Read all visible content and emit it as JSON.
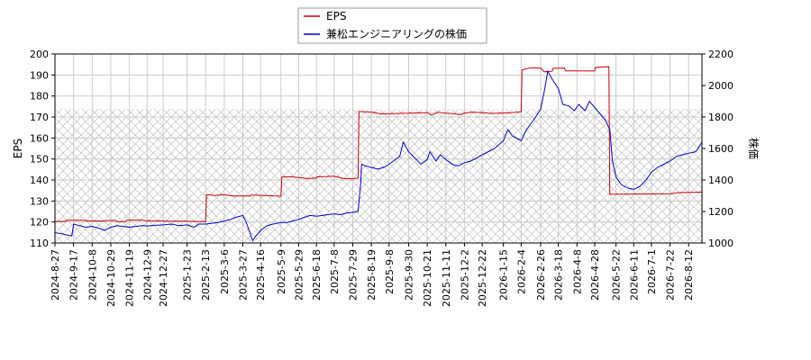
{
  "chart_data": {
    "type": "line",
    "title": "",
    "xlabel": "",
    "ylabel_left": "EPS",
    "ylabel_right": "株価",
    "ylim_left": [
      110,
      200
    ],
    "ylim_right": [
      1000,
      2200
    ],
    "yticks_left": [
      "110",
      "120",
      "130",
      "140",
      "150",
      "160",
      "170",
      "180",
      "190",
      "200"
    ],
    "yticks_right": [
      "1000",
      "1200",
      "1400",
      "1600",
      "1800",
      "2000",
      "2200"
    ],
    "xlim": [
      "2024-08-27",
      "2026-08-27"
    ],
    "xticks": [
      "2024-8-27",
      "2024-9-17",
      "2024-10-8",
      "2024-10-29",
      "2024-11-19",
      "2024-12-9",
      "2024-12-27",
      "2025-1-23",
      "2025-2-13",
      "2025-3-6",
      "2025-3-27",
      "2025-4-16",
      "2025-5-9",
      "2025-5-29",
      "2025-6-18",
      "2025-7-8",
      "2025-7-29",
      "2025-8-19",
      "2025-9-8",
      "2025-9-30",
      "2025-10-21",
      "2025-11-11",
      "2025-12-2",
      "2025-12-22",
      "2026-1-15",
      "2026-2-4",
      "2026-2-26",
      "2026-3-18",
      "2026-4-8",
      "2026-4-28",
      "2026-5-22",
      "2026-6-11",
      "2026-7-1",
      "2026-7-22",
      "2026-8-12"
    ],
    "grid": true,
    "legend_position": "top-center",
    "hatch_band_right": [
      1000,
      1850
    ],
    "series": [
      {
        "name": "EPS",
        "axis": "left",
        "color": "#cc0000",
        "points": [
          [
            "2024-08-27",
            120.3
          ],
          [
            "2024-09-08",
            120.3
          ],
          [
            "2024-09-09",
            120.8
          ],
          [
            "2024-10-01",
            120.8
          ],
          [
            "2024-10-02",
            120.5
          ],
          [
            "2024-10-23",
            120.5
          ],
          [
            "2024-10-24",
            120.7
          ],
          [
            "2024-11-04",
            120.7
          ],
          [
            "2024-11-05",
            120.2
          ],
          [
            "2024-11-15",
            120.2
          ],
          [
            "2024-11-16",
            120.9
          ],
          [
            "2024-12-06",
            120.9
          ],
          [
            "2024-12-07",
            120.6
          ],
          [
            "2024-12-27",
            120.6
          ],
          [
            "2024-12-28",
            120.4
          ],
          [
            "2025-01-21",
            120.4
          ],
          [
            "2025-02-13",
            120.2
          ],
          [
            "2025-02-14",
            133.0
          ],
          [
            "2025-02-24",
            132.6
          ],
          [
            "2025-03-05",
            133.1
          ],
          [
            "2025-03-15",
            132.4
          ],
          [
            "2025-04-04",
            132.4
          ],
          [
            "2025-04-05",
            132.9
          ],
          [
            "2025-04-25",
            132.5
          ],
          [
            "2025-05-09",
            132.3
          ],
          [
            "2025-05-10",
            141.4
          ],
          [
            "2025-05-20",
            141.6
          ],
          [
            "2025-06-08",
            140.7
          ],
          [
            "2025-06-18",
            140.9
          ],
          [
            "2025-06-19",
            141.5
          ],
          [
            "2025-07-08",
            141.8
          ],
          [
            "2025-07-18",
            140.7
          ],
          [
            "2025-07-29",
            140.5
          ],
          [
            "2025-08-04",
            141.0
          ],
          [
            "2025-08-05",
            172.6
          ],
          [
            "2025-08-19",
            172.3
          ],
          [
            "2025-08-30",
            171.5
          ],
          [
            "2025-09-30",
            171.8
          ],
          [
            "2025-10-21",
            172.1
          ],
          [
            "2025-10-26",
            171.0
          ],
          [
            "2025-11-02",
            172.3
          ],
          [
            "2025-11-11",
            171.8
          ],
          [
            "2025-11-20",
            171.6
          ],
          [
            "2025-11-27",
            171.1
          ],
          [
            "2025-12-02",
            171.8
          ],
          [
            "2025-12-10",
            172.3
          ],
          [
            "2025-12-22",
            172.1
          ],
          [
            "2026-01-01",
            171.7
          ],
          [
            "2026-01-15",
            171.9
          ],
          [
            "2026-01-25",
            172.1
          ],
          [
            "2026-02-04",
            172.5
          ],
          [
            "2026-02-05",
            192.4
          ],
          [
            "2026-02-15",
            193.5
          ],
          [
            "2026-02-26",
            193.3
          ],
          [
            "2026-03-02",
            191.5
          ],
          [
            "2026-03-11",
            191.8
          ],
          [
            "2026-03-12",
            193.2
          ],
          [
            "2026-03-25",
            193.3
          ],
          [
            "2026-03-26",
            192.0
          ],
          [
            "2026-04-28",
            191.9
          ],
          [
            "2026-04-29",
            193.6
          ],
          [
            "2026-05-14",
            193.9
          ],
          [
            "2026-05-15",
            133.2
          ],
          [
            "2026-06-11",
            133.3
          ],
          [
            "2026-07-22",
            133.4
          ],
          [
            "2026-08-01",
            134.0
          ],
          [
            "2026-08-27",
            134.2
          ]
        ]
      },
      {
        "name": "兼松エンジニアリングの株価",
        "axis": "right",
        "color": "#0000cc",
        "points": [
          [
            "2024-08-27",
            1065
          ],
          [
            "2024-09-03",
            1060
          ],
          [
            "2024-09-10",
            1050
          ],
          [
            "2024-09-15",
            1045
          ],
          [
            "2024-09-17",
            1120
          ],
          [
            "2024-09-24",
            1110
          ],
          [
            "2024-10-01",
            1100
          ],
          [
            "2024-10-08",
            1105
          ],
          [
            "2024-10-15",
            1095
          ],
          [
            "2024-10-22",
            1080
          ],
          [
            "2024-10-29",
            1100
          ],
          [
            "2024-11-05",
            1110
          ],
          [
            "2024-11-12",
            1105
          ],
          [
            "2024-11-19",
            1100
          ],
          [
            "2024-11-26",
            1105
          ],
          [
            "2024-12-03",
            1110
          ],
          [
            "2024-12-10",
            1108
          ],
          [
            "2024-12-17",
            1112
          ],
          [
            "2024-12-27",
            1115
          ],
          [
            "2025-01-06",
            1120
          ],
          [
            "2025-01-14",
            1110
          ],
          [
            "2025-01-23",
            1115
          ],
          [
            "2025-01-31",
            1100
          ],
          [
            "2025-02-05",
            1120
          ],
          [
            "2025-02-13",
            1120
          ],
          [
            "2025-02-20",
            1125
          ],
          [
            "2025-02-27",
            1130
          ],
          [
            "2025-03-06",
            1140
          ],
          [
            "2025-03-13",
            1150
          ],
          [
            "2025-03-20",
            1165
          ],
          [
            "2025-03-27",
            1175
          ],
          [
            "2025-03-31",
            1130
          ],
          [
            "2025-04-03",
            1080
          ],
          [
            "2025-04-07",
            1015
          ],
          [
            "2025-04-10",
            1040
          ],
          [
            "2025-04-16",
            1080
          ],
          [
            "2025-04-23",
            1110
          ],
          [
            "2025-04-30",
            1120
          ],
          [
            "2025-05-09",
            1130
          ],
          [
            "2025-05-16",
            1130
          ],
          [
            "2025-05-22",
            1140
          ],
          [
            "2025-05-29",
            1150
          ],
          [
            "2025-06-05",
            1165
          ],
          [
            "2025-06-11",
            1175
          ],
          [
            "2025-06-18",
            1170
          ],
          [
            "2025-06-25",
            1175
          ],
          [
            "2025-07-01",
            1180
          ],
          [
            "2025-07-08",
            1185
          ],
          [
            "2025-07-15",
            1180
          ],
          [
            "2025-07-22",
            1190
          ],
          [
            "2025-07-29",
            1195
          ],
          [
            "2025-08-04",
            1200
          ],
          [
            "2025-08-07",
            1380
          ],
          [
            "2025-08-08",
            1500
          ],
          [
            "2025-08-12",
            1490
          ],
          [
            "2025-08-19",
            1480
          ],
          [
            "2025-08-26",
            1470
          ],
          [
            "2025-09-02",
            1480
          ],
          [
            "2025-09-08",
            1500
          ],
          [
            "2025-09-15",
            1530
          ],
          [
            "2025-09-20",
            1550
          ],
          [
            "2025-09-24",
            1640
          ],
          [
            "2025-09-30",
            1580
          ],
          [
            "2025-10-07",
            1540
          ],
          [
            "2025-10-14",
            1500
          ],
          [
            "2025-10-21",
            1530
          ],
          [
            "2025-10-24",
            1580
          ],
          [
            "2025-10-31",
            1520
          ],
          [
            "2025-11-05",
            1560
          ],
          [
            "2025-11-11",
            1530
          ],
          [
            "2025-11-18",
            1500
          ],
          [
            "2025-11-25",
            1490
          ],
          [
            "2025-12-02",
            1510
          ],
          [
            "2025-12-09",
            1520
          ],
          [
            "2025-12-16",
            1540
          ],
          [
            "2025-12-22",
            1560
          ],
          [
            "2025-12-29",
            1580
          ],
          [
            "2026-01-05",
            1600
          ],
          [
            "2026-01-15",
            1650
          ],
          [
            "2026-01-20",
            1720
          ],
          [
            "2026-01-25",
            1680
          ],
          [
            "2026-02-04",
            1650
          ],
          [
            "2026-02-10",
            1720
          ],
          [
            "2026-02-18",
            1780
          ],
          [
            "2026-02-26",
            1850
          ],
          [
            "2026-03-02",
            1960
          ],
          [
            "2026-03-06",
            2090
          ],
          [
            "2026-03-11",
            2040
          ],
          [
            "2026-03-18",
            1980
          ],
          [
            "2026-03-23",
            1880
          ],
          [
            "2026-03-30",
            1870
          ],
          [
            "2026-04-05",
            1840
          ],
          [
            "2026-04-10",
            1880
          ],
          [
            "2026-04-17",
            1840
          ],
          [
            "2026-04-22",
            1900
          ],
          [
            "2026-04-28",
            1860
          ],
          [
            "2026-05-04",
            1820
          ],
          [
            "2026-05-10",
            1780
          ],
          [
            "2026-05-15",
            1720
          ],
          [
            "2026-05-18",
            1520
          ],
          [
            "2026-05-22",
            1420
          ],
          [
            "2026-05-28",
            1370
          ],
          [
            "2026-06-04",
            1350
          ],
          [
            "2026-06-11",
            1340
          ],
          [
            "2026-06-18",
            1360
          ],
          [
            "2026-06-25",
            1400
          ],
          [
            "2026-07-01",
            1450
          ],
          [
            "2026-07-08",
            1480
          ],
          [
            "2026-07-15",
            1500
          ],
          [
            "2026-07-22",
            1520
          ],
          [
            "2026-07-29",
            1550
          ],
          [
            "2026-08-05",
            1560
          ],
          [
            "2026-08-12",
            1570
          ],
          [
            "2026-08-20",
            1580
          ],
          [
            "2026-08-27",
            1640
          ]
        ]
      }
    ]
  }
}
